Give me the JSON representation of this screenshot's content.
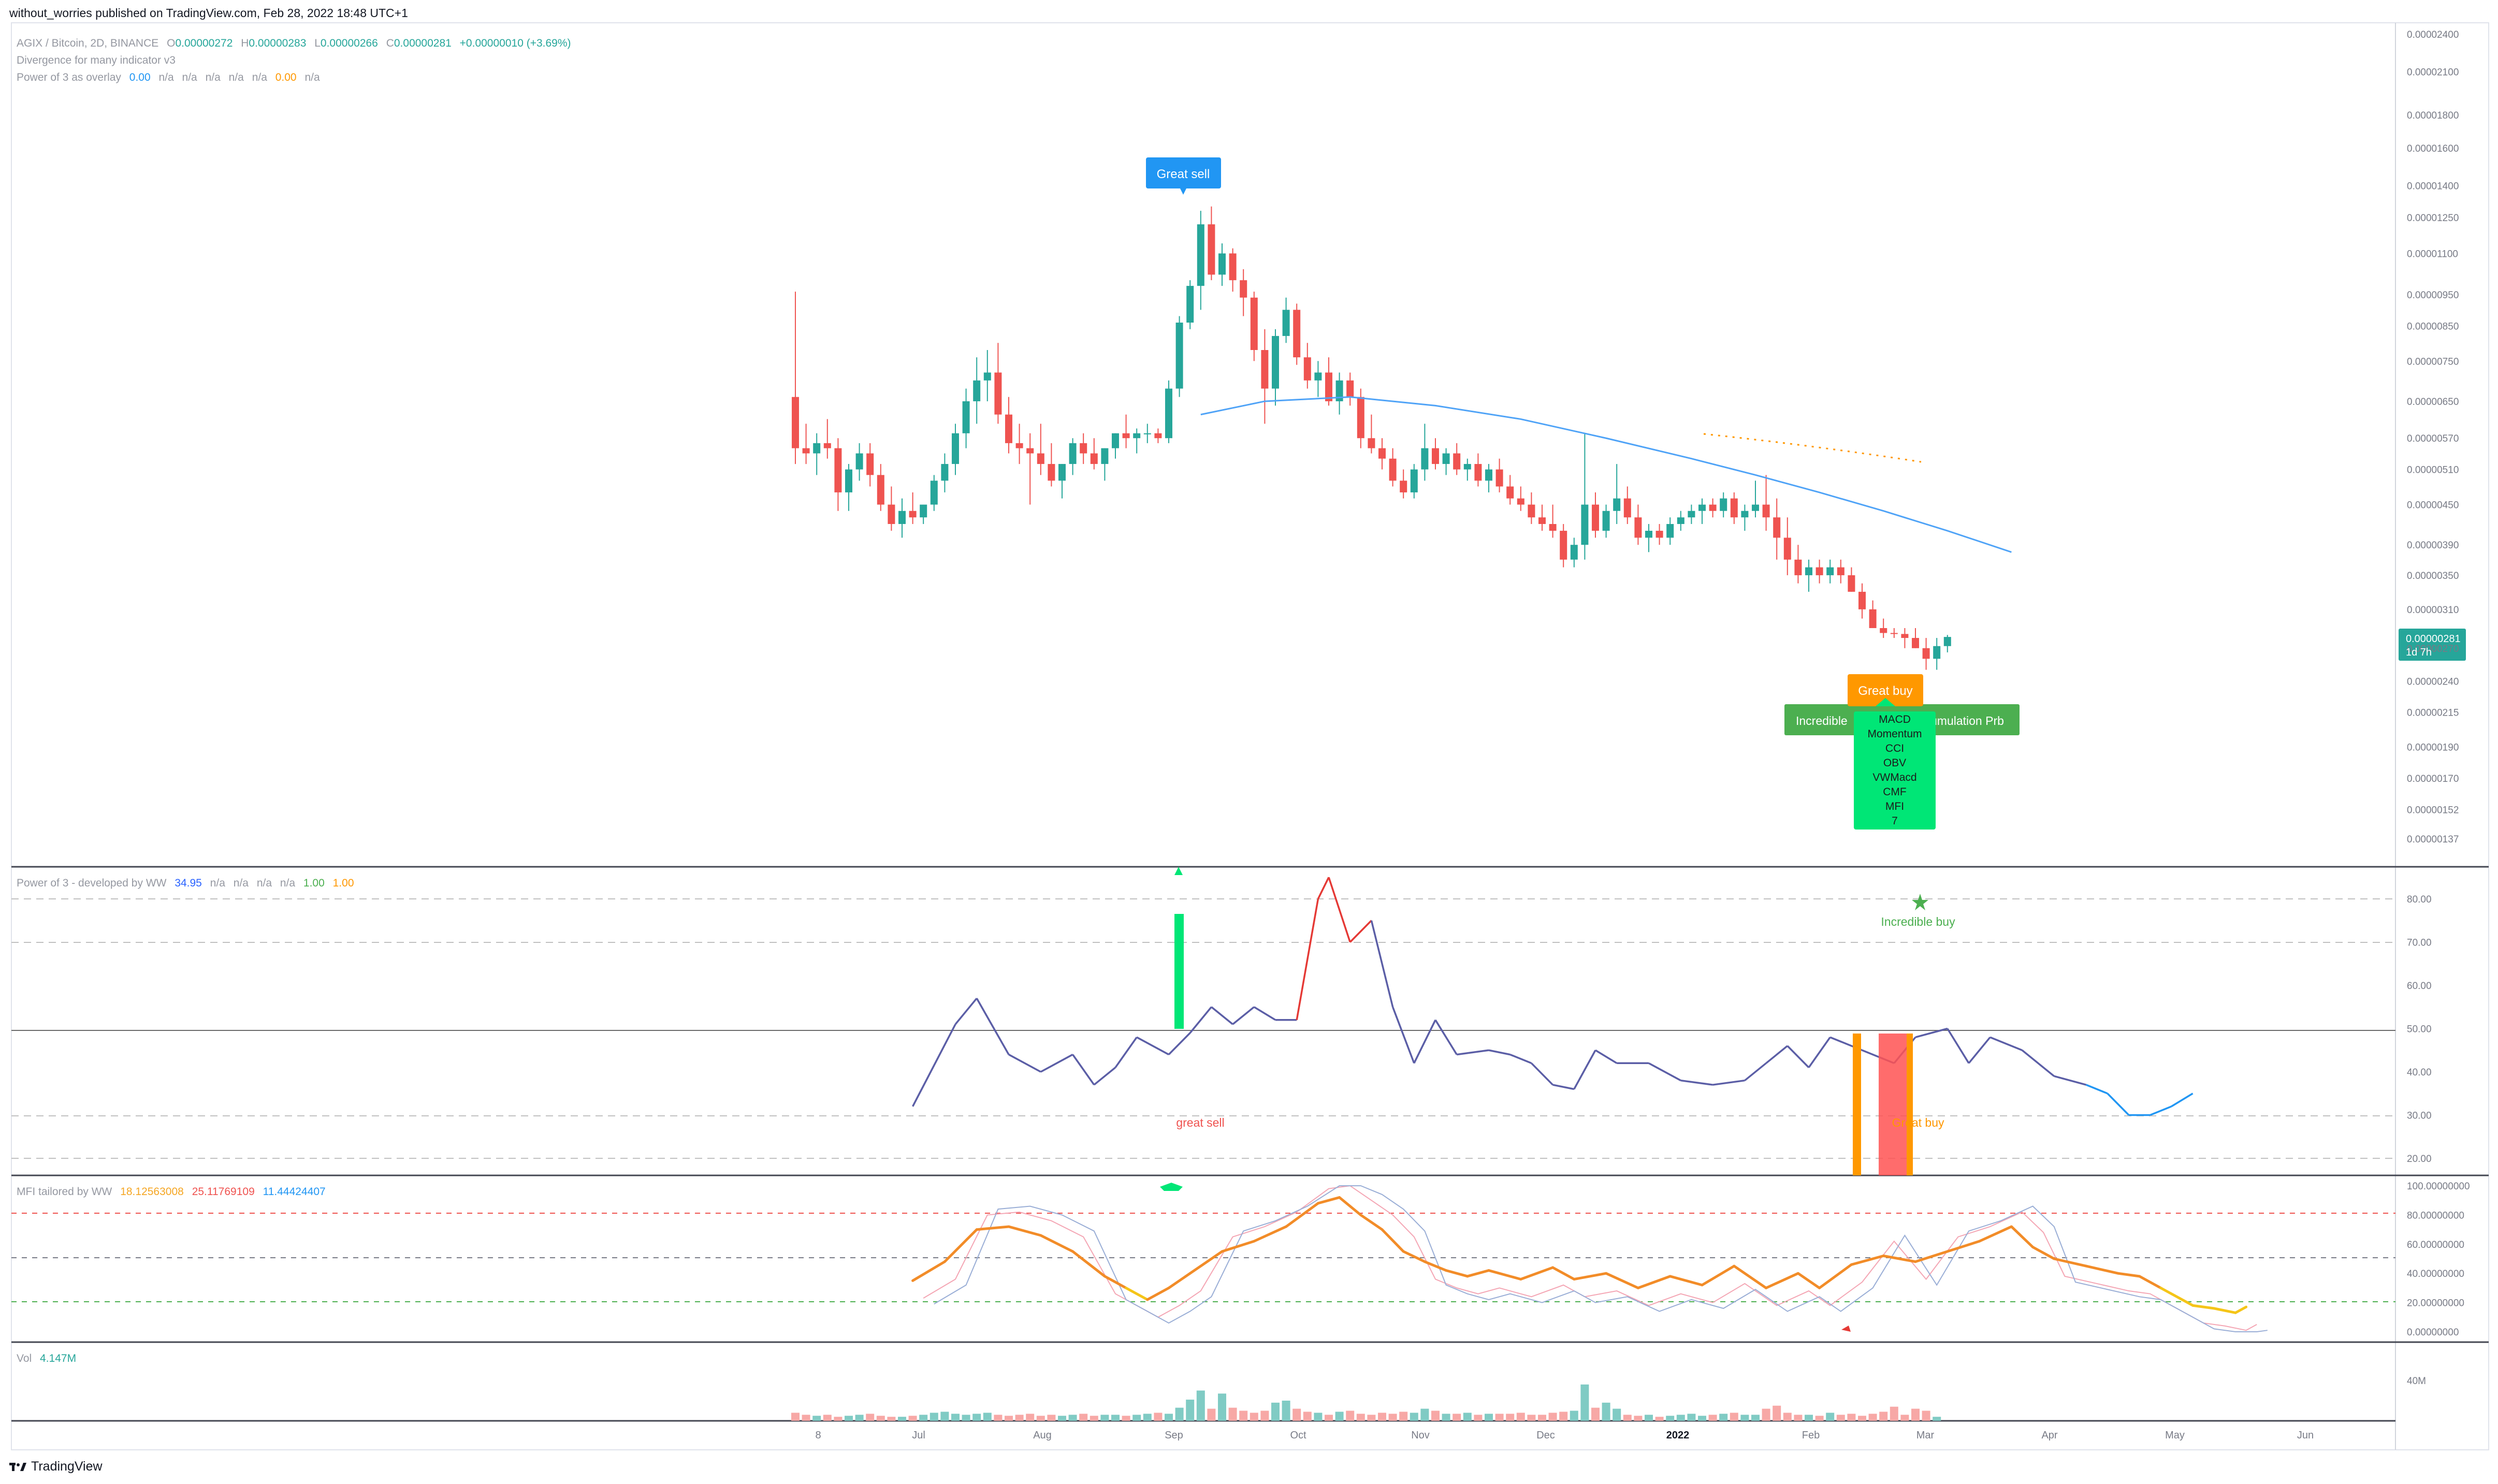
{
  "header": {
    "publish_line": "without_worries published on TradingView.com, Feb 28, 2022 18:48 UTC+1"
  },
  "legend": {
    "symbol": "AGIX / Bitcoin, 2D, BINANCE",
    "ohlc": {
      "o_label": "O",
      "o": "0.00000272",
      "h_label": "H",
      "h": "0.00000283",
      "l_label": "L",
      "l": "0.00000266",
      "c_label": "C",
      "c": "0.00000281",
      "change": "+0.00000010 (+3.69%)"
    },
    "div_name": "Divergence for many indicator v3",
    "p3o_name": "Power of 3 as overlay",
    "p3o_values": [
      "0.00",
      "n/a",
      "n/a",
      "n/a",
      "n/a",
      "n/a",
      "0.00",
      "n/a"
    ],
    "p3_name": "Power of 3 - developed by WW",
    "p3_values": [
      "34.95",
      "n/a",
      "n/a",
      "n/a",
      "n/a",
      "1.00",
      "1.00"
    ],
    "mfi_name": "MFI tailored by WW",
    "mfi_values": [
      "18.12563008",
      "25.11769109",
      "11.44424407"
    ],
    "vol_name": "Vol",
    "vol_value": "4.147M"
  },
  "price_axis": [
    "0.00002400",
    "0.00002100",
    "0.00001800",
    "0.00001600",
    "0.00001400",
    "0.00001250",
    "0.00001100",
    "0.00000950",
    "0.00000850",
    "0.00000750",
    "0.00000650",
    "0.00000570",
    "0.00000510",
    "0.00000450",
    "0.00000390",
    "0.00000350",
    "0.00000310",
    "0.00000270",
    "0.00000240",
    "0.00000215",
    "0.00000190",
    "0.00000170",
    "0.00000152",
    "0.00000137"
  ],
  "last_price": {
    "value": "0.00000281",
    "countdown": "1d 7h"
  },
  "p3_axis": [
    "80.00",
    "70.00",
    "60.00",
    "50.00",
    "40.00",
    "30.00",
    "20.00"
  ],
  "mfi_axis": [
    "100.00000000",
    "80.00000000",
    "60.00000000",
    "40.00000000",
    "20.00000000",
    "0.00000000"
  ],
  "vol_axis": [
    "40M"
  ],
  "time_axis": [
    "8",
    "Jul",
    "Aug",
    "Sep",
    "Oct",
    "Nov",
    "Dec",
    "2022",
    "Feb",
    "Mar",
    "Apr",
    "May",
    "Jun"
  ],
  "labels": {
    "great_sell": "Great sell",
    "great_buy": "Great buy",
    "incredible_left": "Incredible",
    "accumulation_right": "umulation Prb",
    "divergence_list": [
      "MACD",
      "Momentum",
      "CCI",
      "OBV",
      "VWMacd",
      "CMF",
      "MFI",
      "7"
    ],
    "incredible_buy": "Incredible buy",
    "great_sell_low": "great sell",
    "great_buy_low": "Great buy"
  },
  "footer": {
    "brand": "TradingView"
  },
  "colors": {
    "bull": "#26a69a",
    "bear": "#ef5350",
    "ma": "#4fa3f7",
    "p3line": "#5b5ea6",
    "mfi": "#f28c28",
    "green_label": "#4caf50",
    "lime": "#00e676",
    "orange": "#ff9800",
    "blue_label": "#2196f3"
  },
  "chart_data": {
    "type": "candlestick",
    "symbol": "AGIX / Bitcoin",
    "interval": "2D",
    "price_scale": "log",
    "candles_ohlc": [
      [
        6.6e-06,
        9.6e-06,
        5.2e-06,
        5.5e-06
      ],
      [
        5.5e-06,
        6e-06,
        5.2e-06,
        5.4e-06
      ],
      [
        5.4e-06,
        5.8e-06,
        5e-06,
        5.6e-06
      ],
      [
        5.6e-06,
        6.1e-06,
        5.3e-06,
        5.5e-06
      ],
      [
        5.5e-06,
        5.7e-06,
        4.4e-06,
        4.7e-06
      ],
      [
        4.7e-06,
        5.2e-06,
        4.4e-06,
        5.1e-06
      ],
      [
        5.1e-06,
        5.6e-06,
        4.9e-06,
        5.4e-06
      ],
      [
        5.4e-06,
        5.6e-06,
        4.8e-06,
        5e-06
      ],
      [
        5e-06,
        5.2e-06,
        4.4e-06,
        4.5e-06
      ],
      [
        4.5e-06,
        4.8e-06,
        4.1e-06,
        4.2e-06
      ],
      [
        4.2e-06,
        4.6e-06,
        4e-06,
        4.4e-06
      ],
      [
        4.4e-06,
        4.7e-06,
        4.2e-06,
        4.3e-06
      ],
      [
        4.3e-06,
        4.5e-06,
        4.2e-06,
        4.5e-06
      ],
      [
        4.5e-06,
        5e-06,
        4.4e-06,
        4.9e-06
      ],
      [
        4.9e-06,
        5.4e-06,
        4.7e-06,
        5.2e-06
      ],
      [
        5.2e-06,
        6e-06,
        5e-06,
        5.8e-06
      ],
      [
        5.8e-06,
        6.8e-06,
        5.5e-06,
        6.5e-06
      ],
      [
        6.5e-06,
        7.6e-06,
        6e-06,
        7e-06
      ],
      [
        7e-06,
        7.8e-06,
        6.5e-06,
        7.2e-06
      ],
      [
        7.2e-06,
        8e-06,
        6e-06,
        6.2e-06
      ],
      [
        6.2e-06,
        6.6e-06,
        5.4e-06,
        5.6e-06
      ],
      [
        5.6e-06,
        6e-06,
        5.2e-06,
        5.5e-06
      ],
      [
        5.5e-06,
        5.8e-06,
        4.5e-06,
        5.4e-06
      ],
      [
        5.4e-06,
        6e-06,
        5e-06,
        5.2e-06
      ],
      [
        5.2e-06,
        5.6e-06,
        4.8e-06,
        4.9e-06
      ],
      [
        4.9e-06,
        5.2e-06,
        4.6e-06,
        5.2e-06
      ],
      [
        5.2e-06,
        5.7e-06,
        5e-06,
        5.6e-06
      ],
      [
        5.6e-06,
        5.8e-06,
        5.2e-06,
        5.4e-06
      ],
      [
        5.4e-06,
        5.7e-06,
        5.1e-06,
        5.2e-06
      ],
      [
        5.2e-06,
        5.5e-06,
        4.9e-06,
        5.5e-06
      ],
      [
        5.5e-06,
        5.8e-06,
        5.3e-06,
        5.8e-06
      ],
      [
        5.8e-06,
        6.2e-06,
        5.5e-06,
        5.7e-06
      ],
      [
        5.7e-06,
        5.9e-06,
        5.4e-06,
        5.8e-06
      ],
      [
        5.8e-06,
        6e-06,
        5.6e-06,
        5.8e-06
      ],
      [
        5.8e-06,
        5.9e-06,
        5.6e-06,
        5.7e-06
      ],
      [
        5.7e-06,
        7e-06,
        5.6e-06,
        6.8e-06
      ],
      [
        6.8e-06,
        8.8e-06,
        6.6e-06,
        8.6e-06
      ],
      [
        8.6e-06,
        1e-05,
        8.4e-06,
        9.8e-06
      ],
      [
        9.8e-06,
        1.28e-05,
        9e-06,
        1.22e-05
      ],
      [
        1.22e-05,
        1.3e-05,
        1e-05,
        1.02e-05
      ],
      [
        1.02e-05,
        1.14e-05,
        9.8e-06,
        1.1e-05
      ],
      [
        1.1e-05,
        1.12e-05,
        9.6e-06,
        1e-05
      ],
      [
        1e-05,
        1.04e-05,
        8.8e-06,
        9.4e-06
      ],
      [
        9.4e-06,
        9.6e-06,
        7.5e-06,
        7.8e-06
      ],
      [
        7.8e-06,
        8.4e-06,
        6e-06,
        6.8e-06
      ],
      [
        6.8e-06,
        8.4e-06,
        6.4e-06,
        8.2e-06
      ],
      [
        8.2e-06,
        9.4e-06,
        8e-06,
        9e-06
      ],
      [
        9e-06,
        9.2e-06,
        7.4e-06,
        7.6e-06
      ],
      [
        7.6e-06,
        8e-06,
        6.8e-06,
        7e-06
      ],
      [
        7e-06,
        7.5e-06,
        6.6e-06,
        7.2e-06
      ],
      [
        7.2e-06,
        7.6e-06,
        6.4e-06,
        6.5e-06
      ],
      [
        6.5e-06,
        7.2e-06,
        6.2e-06,
        7e-06
      ],
      [
        7e-06,
        7.2e-06,
        6.4e-06,
        6.6e-06
      ],
      [
        6.6e-06,
        6.8e-06,
        5.5e-06,
        5.7e-06
      ],
      [
        5.7e-06,
        6.2e-06,
        5.4e-06,
        5.5e-06
      ],
      [
        5.5e-06,
        5.7e-06,
        5.1e-06,
        5.3e-06
      ],
      [
        5.3e-06,
        5.5e-06,
        4.8e-06,
        4.9e-06
      ],
      [
        4.9e-06,
        5.1e-06,
        4.6e-06,
        4.7e-06
      ],
      [
        4.7e-06,
        5.2e-06,
        4.6e-06,
        5.1e-06
      ],
      [
        5.1e-06,
        6e-06,
        4.9e-06,
        5.5e-06
      ],
      [
        5.5e-06,
        5.7e-06,
        5.1e-06,
        5.2e-06
      ],
      [
        5.2e-06,
        5.5e-06,
        5e-06,
        5.4e-06
      ],
      [
        5.4e-06,
        5.6e-06,
        5e-06,
        5.1e-06
      ],
      [
        5.1e-06,
        5.3e-06,
        4.9e-06,
        5.2e-06
      ],
      [
        5.2e-06,
        5.4e-06,
        4.8e-06,
        4.9e-06
      ],
      [
        4.9e-06,
        5.2e-06,
        4.7e-06,
        5.1e-06
      ],
      [
        5.1e-06,
        5.3e-06,
        4.7e-06,
        4.8e-06
      ],
      [
        4.8e-06,
        5e-06,
        4.5e-06,
        4.6e-06
      ],
      [
        4.6e-06,
        4.8e-06,
        4.4e-06,
        4.5e-06
      ],
      [
        4.5e-06,
        4.7e-06,
        4.2e-06,
        4.3e-06
      ],
      [
        4.3e-06,
        4.5e-06,
        4.1e-06,
        4.2e-06
      ],
      [
        4.2e-06,
        4.5e-06,
        4e-06,
        4.1e-06
      ],
      [
        4.1e-06,
        4.2e-06,
        3.6e-06,
        3.7e-06
      ],
      [
        3.7e-06,
        4e-06,
        3.6e-06,
        3.9e-06
      ],
      [
        3.9e-06,
        5.8e-06,
        3.7e-06,
        4.5e-06
      ],
      [
        4.5e-06,
        4.7e-06,
        4e-06,
        4.1e-06
      ],
      [
        4.1e-06,
        4.5e-06,
        4e-06,
        4.4e-06
      ],
      [
        4.4e-06,
        5.2e-06,
        4.2e-06,
        4.6e-06
      ],
      [
        4.6e-06,
        4.8e-06,
        4.2e-06,
        4.3e-06
      ],
      [
        4.3e-06,
        4.5e-06,
        3.9e-06,
        4e-06
      ],
      [
        4e-06,
        4.2e-06,
        3.8e-06,
        4.1e-06
      ],
      [
        4.1e-06,
        4.2e-06,
        3.9e-06,
        4e-06
      ],
      [
        4e-06,
        4.3e-06,
        3.9e-06,
        4.2e-06
      ],
      [
        4.2e-06,
        4.4e-06,
        4.1e-06,
        4.3e-06
      ],
      [
        4.3e-06,
        4.5e-06,
        4.2e-06,
        4.4e-06
      ],
      [
        4.4e-06,
        4.6e-06,
        4.2e-06,
        4.5e-06
      ],
      [
        4.5e-06,
        4.6e-06,
        4.3e-06,
        4.4e-06
      ],
      [
        4.4e-06,
        4.7e-06,
        4.3e-06,
        4.6e-06
      ],
      [
        4.6e-06,
        4.7e-06,
        4.2e-06,
        4.3e-06
      ],
      [
        4.3e-06,
        4.5e-06,
        4.1e-06,
        4.4e-06
      ],
      [
        4.4e-06,
        4.9e-06,
        4.3e-06,
        4.5e-06
      ],
      [
        4.5e-06,
        5e-06,
        4.1e-06,
        4.3e-06
      ],
      [
        4.3e-06,
        4.6e-06,
        3.7e-06,
        4e-06
      ],
      [
        4e-06,
        4.3e-06,
        3.5e-06,
        3.7e-06
      ],
      [
        3.7e-06,
        3.9e-06,
        3.4e-06,
        3.5e-06
      ],
      [
        3.5e-06,
        3.7e-06,
        3.3e-06,
        3.6e-06
      ],
      [
        3.6e-06,
        3.7e-06,
        3.4e-06,
        3.5e-06
      ],
      [
        3.5e-06,
        3.7e-06,
        3.4e-06,
        3.6e-06
      ],
      [
        3.6e-06,
        3.7e-06,
        3.4e-06,
        3.5e-06
      ],
      [
        3.5e-06,
        3.6e-06,
        3.3e-06,
        3.3e-06
      ],
      [
        3.3e-06,
        3.4e-06,
        3e-06,
        3.1e-06
      ],
      [
        3.1e-06,
        3.2e-06,
        2.9e-06,
        2.9e-06
      ],
      [
        2.9e-06,
        3e-06,
        2.8e-06,
        2.85e-06
      ],
      [
        2.85e-06,
        2.9e-06,
        2.8e-06,
        2.84e-06
      ],
      [
        2.84e-06,
        2.9e-06,
        2.7e-06,
        2.8e-06
      ],
      [
        2.8e-06,
        2.9e-06,
        2.7e-06,
        2.7e-06
      ],
      [
        2.7e-06,
        2.8e-06,
        2.5e-06,
        2.6e-06
      ],
      [
        2.6e-06,
        2.8e-06,
        2.5e-06,
        2.72e-06
      ],
      [
        2.72e-06,
        2.83e-06,
        2.66e-06,
        2.81e-06
      ]
    ],
    "moving_average": [
      [
        38,
        6.2e-06
      ],
      [
        44,
        6.5e-06
      ],
      [
        52,
        6.6e-06
      ],
      [
        60,
        6.4e-06
      ],
      [
        68,
        6.1e-06
      ],
      [
        76,
        5.7e-06
      ],
      [
        84,
        5.3e-06
      ],
      [
        90,
        5e-06
      ],
      [
        96,
        4.7e-06
      ],
      [
        102,
        4.4e-06
      ],
      [
        108,
        4.1e-06
      ],
      [
        114,
        3.8e-06
      ]
    ],
    "power_of_3": [
      [
        11,
        32
      ],
      [
        15,
        51
      ],
      [
        17,
        57
      ],
      [
        20,
        44
      ],
      [
        23,
        40
      ],
      [
        26,
        44
      ],
      [
        28,
        37
      ],
      [
        30,
        41
      ],
      [
        32,
        48
      ],
      [
        35,
        44
      ],
      [
        37,
        49
      ],
      [
        39,
        55
      ],
      [
        41,
        51
      ],
      [
        43,
        55
      ],
      [
        45,
        52
      ],
      [
        47,
        52
      ],
      [
        49,
        80
      ],
      [
        50,
        85
      ],
      [
        52,
        70
      ],
      [
        54,
        75
      ],
      [
        56,
        55
      ],
      [
        58,
        42
      ],
      [
        60,
        52
      ],
      [
        62,
        44
      ],
      [
        65,
        45
      ],
      [
        67,
        44
      ],
      [
        69,
        42
      ],
      [
        71,
        37
      ],
      [
        73,
        36
      ],
      [
        75,
        45
      ],
      [
        77,
        42
      ],
      [
        80,
        42
      ],
      [
        83,
        38
      ],
      [
        86,
        37
      ],
      [
        89,
        38
      ],
      [
        91,
        42
      ],
      [
        93,
        46
      ],
      [
        95,
        41
      ],
      [
        97,
        48
      ],
      [
        100,
        45
      ],
      [
        103,
        42
      ],
      [
        105,
        48
      ],
      [
        108,
        50
      ],
      [
        110,
        42
      ],
      [
        112,
        48
      ],
      [
        115,
        45
      ],
      [
        118,
        39
      ],
      [
        121,
        37
      ],
      [
        123,
        35
      ],
      [
        125,
        30
      ],
      [
        127,
        30
      ],
      [
        129,
        32
      ],
      [
        131,
        35
      ]
    ],
    "mfi": [
      [
        11,
        35
      ],
      [
        14,
        48
      ],
      [
        17,
        70
      ],
      [
        20,
        72
      ],
      [
        23,
        66
      ],
      [
        26,
        55
      ],
      [
        29,
        38
      ],
      [
        31,
        30
      ],
      [
        33,
        22
      ],
      [
        35,
        30
      ],
      [
        37,
        40
      ],
      [
        40,
        55
      ],
      [
        43,
        62
      ],
      [
        46,
        72
      ],
      [
        49,
        88
      ],
      [
        51,
        92
      ],
      [
        53,
        80
      ],
      [
        55,
        70
      ],
      [
        57,
        55
      ],
      [
        59,
        48
      ],
      [
        61,
        42
      ],
      [
        63,
        38
      ],
      [
        65,
        42
      ],
      [
        68,
        36
      ],
      [
        71,
        44
      ],
      [
        73,
        36
      ],
      [
        76,
        40
      ],
      [
        79,
        30
      ],
      [
        82,
        38
      ],
      [
        85,
        32
      ],
      [
        88,
        45
      ],
      [
        91,
        30
      ],
      [
        94,
        40
      ],
      [
        96,
        30
      ],
      [
        99,
        46
      ],
      [
        102,
        52
      ],
      [
        105,
        48
      ],
      [
        108,
        55
      ],
      [
        111,
        62
      ],
      [
        114,
        72
      ],
      [
        116,
        58
      ],
      [
        118,
        50
      ],
      [
        121,
        45
      ],
      [
        124,
        40
      ],
      [
        126,
        38
      ],
      [
        128,
        30
      ],
      [
        131,
        18
      ],
      [
        133,
        16
      ],
      [
        135,
        13
      ],
      [
        136,
        17
      ]
    ],
    "volume_m": [
      8,
      6,
      5,
      6,
      4,
      5,
      6,
      7,
      5,
      4,
      4,
      5,
      6,
      8,
      9,
      7,
      6,
      7,
      8,
      6,
      5,
      6,
      7,
      5,
      6,
      5,
      6,
      7,
      5,
      6,
      6,
      5,
      6,
      7,
      8,
      7,
      13,
      21,
      30,
      12,
      27,
      13,
      10,
      8,
      10,
      18,
      20,
      12,
      9,
      8,
      6,
      9,
      10,
      7,
      6,
      8,
      7,
      9,
      8,
      12,
      10,
      7,
      7,
      8,
      6,
      7,
      7,
      7,
      8,
      6,
      6,
      8,
      9,
      10,
      36,
      13,
      18,
      12,
      6,
      5,
      6,
      4,
      5,
      6,
      7,
      5,
      6,
      7,
      8,
      6,
      6,
      12,
      15,
      8,
      6,
      6,
      5,
      8,
      6,
      7,
      5,
      7,
      9,
      14,
      6,
      12,
      10,
      4
    ]
  }
}
